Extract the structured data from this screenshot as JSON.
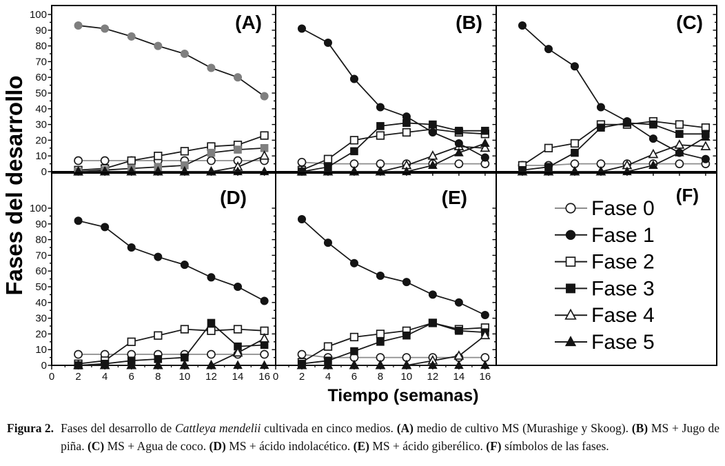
{
  "figure": {
    "y_axis_label": "Fases del desarrollo",
    "x_axis_label": "Tiempo (semanas)",
    "y_ticks": [
      0,
      10,
      20,
      30,
      40,
      50,
      60,
      70,
      80,
      90,
      100
    ],
    "x_ticks": [
      0,
      2,
      4,
      6,
      8,
      10,
      12,
      14,
      16
    ],
    "colors": {
      "line": "#1a1a1a",
      "fase0_line": "#8c8c8c",
      "black_marker": "#141414",
      "gray_marker": "#7f7f7f",
      "open_fill": "#ffffff"
    }
  },
  "chart_data": {
    "type": "line",
    "title": "",
    "xlabel": "Tiempo (semanas)",
    "ylabel": "Fases del desarrollo",
    "x_weeks": [
      2,
      4,
      6,
      8,
      10,
      12,
      14,
      16
    ],
    "xlim": [
      0,
      16.85
    ],
    "ylim": [
      0,
      100
    ],
    "grid": false,
    "legend_position": "panel-F",
    "legend": [
      {
        "name": "Fase 0",
        "marker": "circle",
        "filled": false
      },
      {
        "name": "Fase 1",
        "marker": "circle",
        "filled": true
      },
      {
        "name": "Fase 2",
        "marker": "square",
        "filled": false
      },
      {
        "name": "Fase 3",
        "marker": "square",
        "filled": true
      },
      {
        "name": "Fase 4",
        "marker": "triangle",
        "filled": false
      },
      {
        "name": "Fase 5",
        "marker": "triangle",
        "filled": true
      }
    ],
    "panels": [
      {
        "id": "A",
        "label": "(A)",
        "gray_filled_markers": true,
        "series": {
          "Fase 0": [
            7,
            7,
            7,
            7,
            7,
            7,
            7,
            7
          ],
          "Fase 1": [
            93,
            91,
            86,
            80,
            75,
            66,
            60,
            48
          ],
          "Fase 2": [
            1,
            2,
            7,
            10,
            13,
            16,
            17,
            23
          ],
          "Fase 3": [
            0,
            1,
            2,
            3,
            4,
            12,
            14,
            15
          ],
          "Fase 4": [
            0,
            0,
            0,
            0,
            0,
            0,
            3,
            10
          ],
          "Fase 5": [
            0,
            0,
            0,
            0,
            0,
            0,
            0,
            0
          ]
        }
      },
      {
        "id": "B",
        "label": "(B)",
        "gray_filled_markers": false,
        "series": {
          "Fase 0": [
            6,
            5,
            5,
            5,
            5,
            5,
            5,
            5
          ],
          "Fase 1": [
            91,
            82,
            59,
            41,
            35,
            25,
            18,
            9
          ],
          "Fase 2": [
            1,
            8,
            20,
            23,
            25,
            27,
            25,
            24
          ],
          "Fase 3": [
            0,
            3,
            13,
            29,
            31,
            30,
            26,
            26
          ],
          "Fase 4": [
            0,
            0,
            0,
            0,
            4,
            10,
            16,
            15
          ],
          "Fase 5": [
            0,
            0,
            0,
            0,
            0,
            4,
            12,
            18
          ]
        }
      },
      {
        "id": "C",
        "label": "(C)",
        "gray_filled_markers": false,
        "series": {
          "Fase 0": [
            4,
            4,
            5,
            5,
            5,
            5,
            5,
            5
          ],
          "Fase 1": [
            93,
            78,
            67,
            41,
            32,
            21,
            12,
            8
          ],
          "Fase 2": [
            4,
            15,
            18,
            30,
            30,
            32,
            30,
            28
          ],
          "Fase 3": [
            1,
            3,
            12,
            28,
            31,
            30,
            24,
            24
          ],
          "Fase 4": [
            0,
            0,
            0,
            0,
            4,
            11,
            17,
            16
          ],
          "Fase 5": [
            0,
            0,
            0,
            0,
            0,
            4,
            12,
            22
          ]
        }
      },
      {
        "id": "D",
        "label": "(D)",
        "gray_filled_markers": false,
        "series": {
          "Fase 0": [
            7,
            7,
            7,
            7,
            7,
            7,
            7,
            7
          ],
          "Fase 1": [
            92,
            88,
            75,
            69,
            64,
            56,
            50,
            41
          ],
          "Fase 2": [
            1,
            3,
            15,
            19,
            23,
            22,
            23,
            22
          ],
          "Fase 3": [
            0,
            1,
            3,
            4,
            5,
            27,
            12,
            13
          ],
          "Fase 4": [
            0,
            0,
            0,
            0,
            0,
            0,
            8,
            17
          ],
          "Fase 5": [
            0,
            0,
            0,
            0,
            0,
            0,
            0,
            0
          ]
        }
      },
      {
        "id": "E",
        "label": "(E)",
        "gray_filled_markers": false,
        "series": {
          "Fase 0": [
            7,
            5,
            5,
            5,
            5,
            5,
            5,
            5
          ],
          "Fase 1": [
            93,
            78,
            65,
            57,
            53,
            45,
            40,
            32
          ],
          "Fase 2": [
            2,
            12,
            18,
            20,
            22,
            27,
            23,
            24
          ],
          "Fase 3": [
            1,
            3,
            9,
            15,
            19,
            27,
            22,
            21
          ],
          "Fase 4": [
            0,
            0,
            0,
            0,
            0,
            3,
            6,
            19
          ],
          "Fase 5": [
            0,
            0,
            0,
            0,
            0,
            0,
            0,
            0
          ]
        }
      },
      {
        "id": "F",
        "label": "(F)",
        "legend_panel": true
      }
    ]
  },
  "caption": {
    "label": "Figura 2.",
    "segments": [
      {
        "t": "Fases del desarrollo de ",
        "s": "n"
      },
      {
        "t": "Cattleya mendelii",
        "s": "i"
      },
      {
        "t": " cultivada en cinco medios. ",
        "s": "n"
      },
      {
        "t": "(A)",
        "s": "b"
      },
      {
        "t": " medio de cultivo MS (Murashige y Skoog). ",
        "s": "n"
      },
      {
        "t": "(B)",
        "s": "b"
      },
      {
        "t": " MS + Jugo de piña. ",
        "s": "n"
      },
      {
        "t": "(C)",
        "s": "b"
      },
      {
        "t": " MS + Agua de coco. ",
        "s": "n"
      },
      {
        "t": "(D)",
        "s": "b"
      },
      {
        "t": " MS + ácido indolacético. ",
        "s": "n"
      },
      {
        "t": "(E)",
        "s": "b"
      },
      {
        "t": " MS + ácido giberélico. ",
        "s": "n"
      },
      {
        "t": "(F)",
        "s": "b"
      },
      {
        "t": " símbolos de las fases.",
        "s": "n"
      }
    ]
  }
}
